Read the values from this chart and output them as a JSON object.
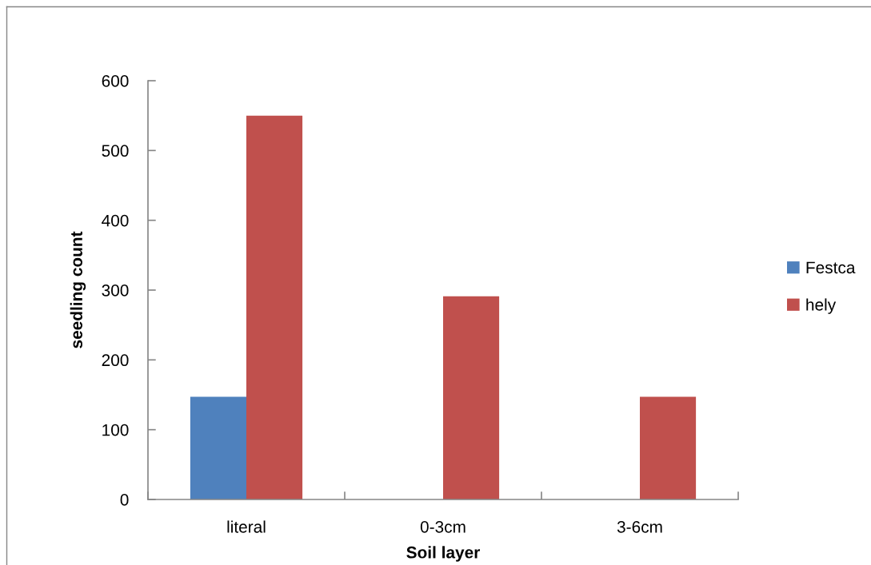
{
  "chart_data": {
    "type": "bar",
    "xlabel": "Soil layer",
    "ylabel": "seedling count",
    "categories": [
      "literal",
      "0-3cm",
      "3-6cm"
    ],
    "series": [
      {
        "name": "Festca",
        "color": "#4f81bd",
        "values": [
          147,
          0,
          0
        ]
      },
      {
        "name": "hely",
        "color": "#c0504d",
        "values": [
          550,
          291,
          147
        ]
      }
    ],
    "ylim": [
      0,
      600
    ],
    "yticks": [
      0,
      100,
      200,
      300,
      400,
      500,
      600
    ],
    "grid": false,
    "legend": "right"
  }
}
